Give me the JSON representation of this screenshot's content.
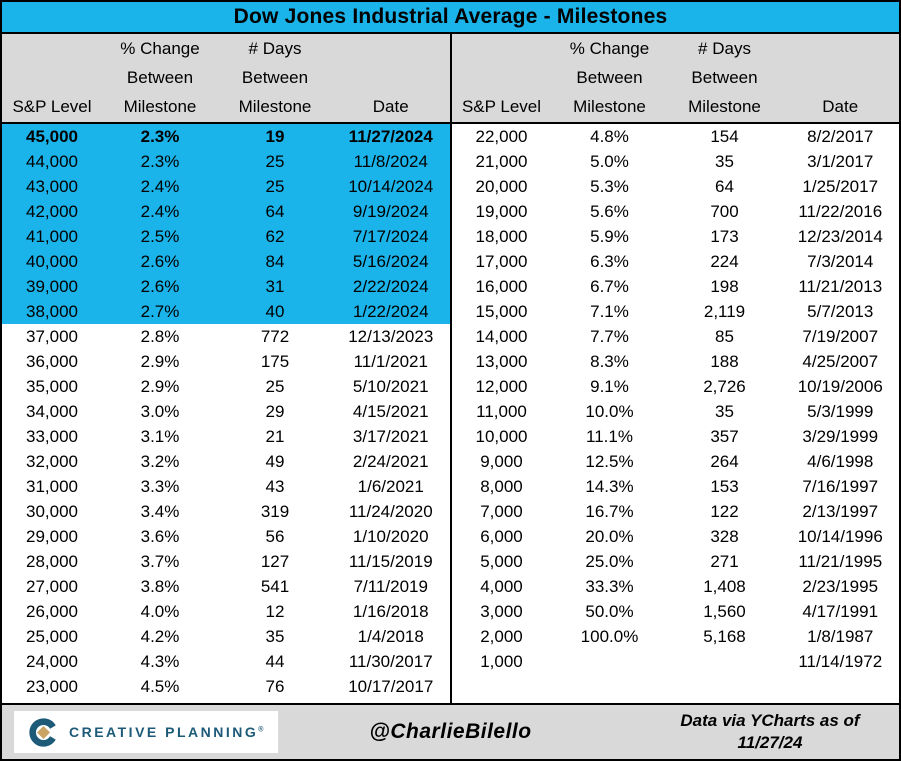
{
  "title": "Dow Jones Industrial Average - Milestones",
  "header": {
    "level": "S&P Level",
    "change": [
      "% Change",
      "Between",
      "Milestone"
    ],
    "days": [
      "# Days",
      "Between",
      "Milestone"
    ],
    "date": "Date"
  },
  "chart_data": {
    "type": "table",
    "title": "Dow Jones Industrial Average - Milestones",
    "columns": [
      "S&P Level",
      "% Change Between Milestone",
      "# Days Between Milestone",
      "Date"
    ],
    "left_rows": [
      [
        "45,000",
        "2.3%",
        "19",
        "11/27/2024"
      ],
      [
        "44,000",
        "2.3%",
        "25",
        "11/8/2024"
      ],
      [
        "43,000",
        "2.4%",
        "25",
        "10/14/2024"
      ],
      [
        "42,000",
        "2.4%",
        "64",
        "9/19/2024"
      ],
      [
        "41,000",
        "2.5%",
        "62",
        "7/17/2024"
      ],
      [
        "40,000",
        "2.6%",
        "84",
        "5/16/2024"
      ],
      [
        "39,000",
        "2.6%",
        "31",
        "2/22/2024"
      ],
      [
        "38,000",
        "2.7%",
        "40",
        "1/22/2024"
      ],
      [
        "37,000",
        "2.8%",
        "772",
        "12/13/2023"
      ],
      [
        "36,000",
        "2.9%",
        "175",
        "11/1/2021"
      ],
      [
        "35,000",
        "2.9%",
        "25",
        "5/10/2021"
      ],
      [
        "34,000",
        "3.0%",
        "29",
        "4/15/2021"
      ],
      [
        "33,000",
        "3.1%",
        "21",
        "3/17/2021"
      ],
      [
        "32,000",
        "3.2%",
        "49",
        "2/24/2021"
      ],
      [
        "31,000",
        "3.3%",
        "43",
        "1/6/2021"
      ],
      [
        "30,000",
        "3.4%",
        "319",
        "11/24/2020"
      ],
      [
        "29,000",
        "3.6%",
        "56",
        "1/10/2020"
      ],
      [
        "28,000",
        "3.7%",
        "127",
        "11/15/2019"
      ],
      [
        "27,000",
        "3.8%",
        "541",
        "7/11/2019"
      ],
      [
        "26,000",
        "4.0%",
        "12",
        "1/16/2018"
      ],
      [
        "25,000",
        "4.2%",
        "35",
        "1/4/2018"
      ],
      [
        "24,000",
        "4.3%",
        "44",
        "11/30/2017"
      ],
      [
        "23,000",
        "4.5%",
        "76",
        "10/17/2017"
      ]
    ],
    "right_rows": [
      [
        "22,000",
        "4.8%",
        "154",
        "8/2/2017"
      ],
      [
        "21,000",
        "5.0%",
        "35",
        "3/1/2017"
      ],
      [
        "20,000",
        "5.3%",
        "64",
        "1/25/2017"
      ],
      [
        "19,000",
        "5.6%",
        "700",
        "11/22/2016"
      ],
      [
        "18,000",
        "5.9%",
        "173",
        "12/23/2014"
      ],
      [
        "17,000",
        "6.3%",
        "224",
        "7/3/2014"
      ],
      [
        "16,000",
        "6.7%",
        "198",
        "11/21/2013"
      ],
      [
        "15,000",
        "7.1%",
        "2,119",
        "5/7/2013"
      ],
      [
        "14,000",
        "7.7%",
        "85",
        "7/19/2007"
      ],
      [
        "13,000",
        "8.3%",
        "188",
        "4/25/2007"
      ],
      [
        "12,000",
        "9.1%",
        "2,726",
        "10/19/2006"
      ],
      [
        "11,000",
        "10.0%",
        "35",
        "5/3/1999"
      ],
      [
        "10,000",
        "11.1%",
        "357",
        "3/29/1999"
      ],
      [
        "9,000",
        "12.5%",
        "264",
        "4/6/1998"
      ],
      [
        "8,000",
        "14.3%",
        "153",
        "7/16/1997"
      ],
      [
        "7,000",
        "16.7%",
        "122",
        "2/13/1997"
      ],
      [
        "6,000",
        "20.0%",
        "328",
        "10/14/1996"
      ],
      [
        "5,000",
        "25.0%",
        "271",
        "11/21/1995"
      ],
      [
        "4,000",
        "33.3%",
        "1,408",
        "2/23/1995"
      ],
      [
        "3,000",
        "50.0%",
        "1,560",
        "4/17/1991"
      ],
      [
        "2,000",
        "100.0%",
        "5,168",
        "1/8/1987"
      ],
      [
        "1,000",
        "",
        "",
        "11/14/1972"
      ]
    ],
    "left_highlighted_count": 8,
    "left_bold_first_row": true,
    "highlighted_levels": [
      "45,000",
      "44,000",
      "43,000",
      "42,000",
      "41,000",
      "40,000",
      "39,000",
      "38,000"
    ]
  },
  "footer": {
    "brand": "CREATIVE PLANNING",
    "brand_mark": "®",
    "handle": "@CharlieBilello",
    "source_line1": "Data via YCharts as of",
    "source_line2": "11/27/24"
  },
  "colors": {
    "highlight_cyan": "#1ab3ea",
    "header_gray": "#d9d9d9",
    "brand_teal": "#1d5a78",
    "brand_gold": "#c9a464",
    "border_black": "#000000"
  }
}
